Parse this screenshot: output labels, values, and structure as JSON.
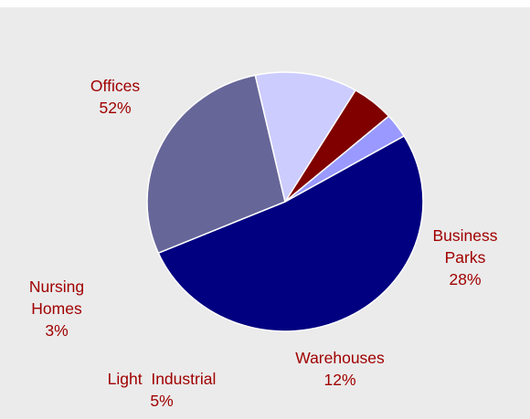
{
  "chart_data": {
    "type": "pie",
    "background": "#ebebeb",
    "label_color": "#a00000",
    "slices": [
      {
        "label_lines": [
          "Offices",
          "52%"
        ],
        "value": 52,
        "color": "#000080"
      },
      {
        "label_lines": [
          "Business",
          "Parks",
          "28%"
        ],
        "value": 28,
        "color": "#666699"
      },
      {
        "label_lines": [
          "Warehouses",
          "12%"
        ],
        "value": 12,
        "color": "#ccccff"
      },
      {
        "label_lines": [
          "Light  Industrial",
          "5%"
        ],
        "value": 5,
        "color": "#800000"
      },
      {
        "label_lines": [
          "Nursing",
          "Homes",
          "3%"
        ],
        "value": 3,
        "color": "#9999ff"
      }
    ]
  }
}
